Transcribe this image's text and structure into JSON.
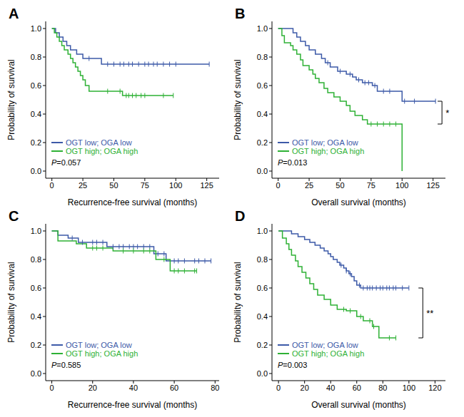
{
  "chart_data": [
    {
      "type": "line",
      "panel": "A",
      "x_label": "Recurrence-free survival (months)",
      "y_label": "Probability of survival",
      "p_label": "P=0.057",
      "grid": false,
      "line_style": "step",
      "xlim": [
        -5,
        135
      ],
      "xticks": [
        0,
        25,
        50,
        75,
        100,
        125
      ],
      "ylim": [
        -0.05,
        1.05
      ],
      "yticks": [
        {
          "value": 0,
          "label": "0.0"
        },
        0.2,
        0.4,
        0.6,
        0.8,
        {
          "value": 1,
          "label": "1.0"
        }
      ],
      "series": [
        {
          "name": "OGT low; OGA low",
          "color": "#3d5aa8",
          "x": [
            0,
            3,
            6,
            9,
            12,
            15,
            20,
            25,
            40,
            127
          ],
          "values": [
            1,
            0.97,
            0.94,
            0.91,
            0.88,
            0.85,
            0.82,
            0.79,
            0.75,
            0.75
          ],
          "censored": [
            30,
            45,
            50,
            55,
            58,
            62,
            65,
            70,
            75,
            78,
            82,
            85,
            90,
            95,
            100,
            127
          ]
        },
        {
          "name": "OGT high; OGA high",
          "color": "#2eb135",
          "x": [
            0,
            2,
            4,
            6,
            8,
            10,
            13,
            15,
            17,
            19,
            21,
            23,
            25,
            27,
            30,
            57,
            98
          ],
          "values": [
            1,
            0.97,
            0.94,
            0.91,
            0.88,
            0.85,
            0.82,
            0.79,
            0.76,
            0.73,
            0.7,
            0.67,
            0.64,
            0.6,
            0.56,
            0.53,
            0.53
          ],
          "censored": [
            45,
            55,
            60,
            62,
            65,
            68,
            72,
            75,
            90,
            98
          ]
        }
      ]
    },
    {
      "type": "line",
      "panel": "B",
      "x_label": "Overall survival (months)",
      "y_label": "Probability of survival",
      "p_label": "P=0.013",
      "significance": "*",
      "grid": false,
      "line_style": "step",
      "xlim": [
        -5,
        135
      ],
      "xticks": [
        0,
        25,
        50,
        75,
        100,
        125
      ],
      "ylim": [
        -0.05,
        1.05
      ],
      "yticks": [
        {
          "value": 0,
          "label": "0.0"
        },
        0.2,
        0.4,
        0.6,
        0.8,
        {
          "value": 1,
          "label": "1.0"
        }
      ],
      "series": [
        {
          "name": "OGT low; OGA low",
          "color": "#3d5aa8",
          "x": [
            0,
            12,
            15,
            18,
            22,
            25,
            30,
            35,
            38,
            42,
            48,
            55,
            60,
            63,
            68,
            76,
            80,
            100,
            127
          ],
          "values": [
            1,
            0.97,
            0.94,
            0.91,
            0.88,
            0.85,
            0.82,
            0.79,
            0.76,
            0.73,
            0.7,
            0.68,
            0.66,
            0.64,
            0.62,
            0.6,
            0.56,
            0.49,
            0.49
          ],
          "censored": [
            40,
            50,
            58,
            65,
            70,
            73,
            78,
            85,
            90,
            102,
            110,
            127
          ]
        },
        {
          "name": "OGT high; OGA high",
          "color": "#2eb135",
          "x": [
            0,
            3,
            5,
            10,
            12,
            15,
            18,
            20,
            25,
            28,
            30,
            33,
            37,
            40,
            45,
            50,
            55,
            58,
            62,
            68,
            72,
            100
          ],
          "values": [
            1,
            0.95,
            0.9,
            0.88,
            0.85,
            0.82,
            0.78,
            0.74,
            0.71,
            0.68,
            0.65,
            0.62,
            0.58,
            0.55,
            0.52,
            0.49,
            0.46,
            0.42,
            0.39,
            0.36,
            0.33,
            0
          ],
          "censored": [
            75,
            80,
            85,
            90,
            95
          ]
        }
      ]
    },
    {
      "type": "line",
      "panel": "C",
      "x_label": "Recurrence-free survival (months)",
      "y_label": "Probability of survival",
      "p_label": "P=0.585",
      "grid": false,
      "line_style": "step",
      "xlim": [
        -3,
        82
      ],
      "xticks": [
        0,
        20,
        40,
        60,
        80
      ],
      "ylim": [
        -0.05,
        1.05
      ],
      "yticks": [
        {
          "value": 0,
          "label": "0.0"
        },
        0.2,
        0.4,
        0.6,
        0.8,
        {
          "value": 1,
          "label": "1.0"
        }
      ],
      "series": [
        {
          "name": "OGT low; OGA low",
          "color": "#3d5aa8",
          "x": [
            0,
            3,
            8,
            13,
            27,
            50,
            56,
            78
          ],
          "values": [
            1,
            0.97,
            0.95,
            0.92,
            0.89,
            0.84,
            0.79,
            0.79
          ],
          "censored": [
            10,
            15,
            20,
            22,
            25,
            30,
            33,
            35,
            38,
            40,
            42,
            45,
            48,
            52,
            55,
            60,
            62,
            65,
            70,
            72,
            75,
            78
          ]
        },
        {
          "name": "OGT high; OGA high",
          "color": "#2eb135",
          "x": [
            0,
            3,
            12,
            17,
            30,
            51,
            58,
            71
          ],
          "values": [
            1,
            0.93,
            0.91,
            0.88,
            0.86,
            0.8,
            0.72,
            0.72
          ],
          "censored": [
            20,
            22,
            25,
            35,
            40,
            45,
            48,
            55,
            60,
            62,
            65,
            70,
            71
          ]
        }
      ]
    },
    {
      "type": "line",
      "panel": "D",
      "x_label": "Overall survival (months)",
      "y_label": "Probability of survival",
      "p_label": "P=0.003",
      "significance": "**",
      "grid": false,
      "line_style": "step",
      "xlim": [
        -5,
        128
      ],
      "xticks": [
        0,
        20,
        40,
        60,
        80,
        100,
        120
      ],
      "ylim": [
        -0.05,
        1.05
      ],
      "yticks": [
        {
          "value": 0,
          "label": "0.0"
        },
        0.2,
        0.4,
        0.6,
        0.8,
        {
          "value": 1,
          "label": "1.0"
        }
      ],
      "series": [
        {
          "name": "OGT low; OGA low",
          "color": "#3d5aa8",
          "x": [
            0,
            10,
            15,
            20,
            24,
            28,
            32,
            35,
            38,
            40,
            42,
            45,
            47,
            50,
            52,
            54,
            56,
            58,
            60,
            63,
            100
          ],
          "values": [
            1,
            0.98,
            0.96,
            0.94,
            0.92,
            0.9,
            0.88,
            0.86,
            0.84,
            0.82,
            0.8,
            0.78,
            0.76,
            0.74,
            0.72,
            0.7,
            0.68,
            0.65,
            0.62,
            0.6,
            0.6
          ],
          "censored": [
            48,
            52,
            55,
            62,
            65,
            68,
            70,
            72,
            75,
            78,
            80,
            83,
            85,
            88,
            90,
            95,
            100
          ]
        },
        {
          "name": "OGT high; OGA high",
          "color": "#2eb135",
          "x": [
            0,
            3,
            6,
            8,
            10,
            13,
            15,
            18,
            21,
            24,
            27,
            30,
            35,
            40,
            45,
            52,
            60,
            65,
            72,
            77,
            90
          ],
          "values": [
            1,
            0.95,
            0.91,
            0.87,
            0.83,
            0.79,
            0.75,
            0.71,
            0.67,
            0.63,
            0.59,
            0.55,
            0.52,
            0.48,
            0.45,
            0.44,
            0.4,
            0.37,
            0.33,
            0.25,
            0.25
          ],
          "censored": [
            50,
            55,
            63,
            70,
            73,
            85,
            90
          ]
        }
      ]
    }
  ]
}
